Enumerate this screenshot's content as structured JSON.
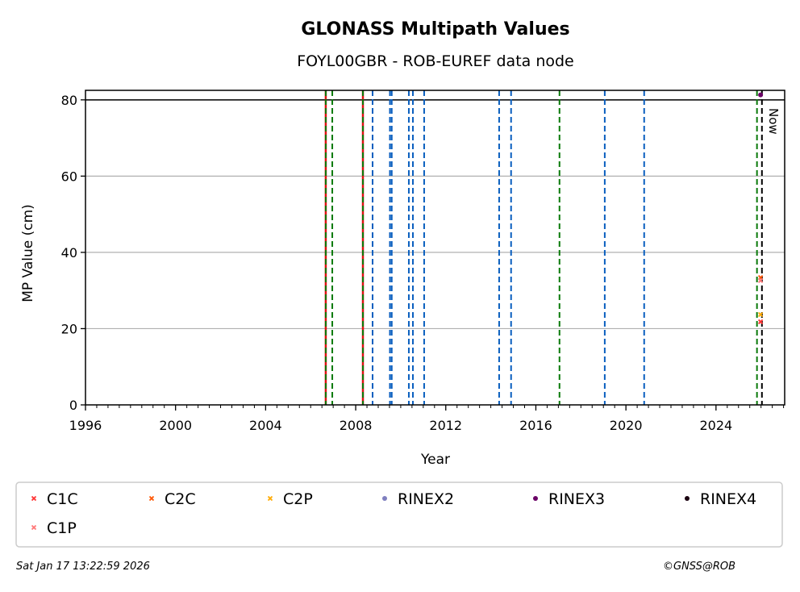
{
  "chart_data": {
    "type": "scatter",
    "title": "GLONASS Multipath Values",
    "subtitle": "FOYL00GBR - ROB-EUREF data node",
    "xlabel": "Year",
    "ylabel": "MP Value (cm)",
    "xlim": [
      1996,
      2027.05
    ],
    "ylim": [
      0,
      82.5
    ],
    "xticks": [
      1996,
      2000,
      2004,
      2008,
      2012,
      2016,
      2020,
      2024
    ],
    "yticks": [
      0,
      20,
      40,
      60,
      80
    ],
    "grid": "horizontal",
    "threshold_line": 80,
    "now_label": "Now",
    "now_year": 2026.04,
    "series": [
      {
        "name": "C1C",
        "marker": "x",
        "color": "#ff3333",
        "points": [
          [
            2025.98,
            21.8
          ]
        ]
      },
      {
        "name": "C2C",
        "marker": "x",
        "color": "#ff5500",
        "points": [
          [
            2025.98,
            33.4
          ]
        ]
      },
      {
        "name": "C2P",
        "marker": "x",
        "color": "#ffaa00",
        "points": [
          [
            2025.98,
            23.7
          ]
        ]
      },
      {
        "name": "RINEX2",
        "marker": "o",
        "color": "#7f7fbf",
        "points": []
      },
      {
        "name": "RINEX3",
        "marker": "o",
        "color": "#6a0066",
        "points": [
          [
            2025.98,
            81.3
          ]
        ]
      },
      {
        "name": "RINEX4",
        "marker": "o",
        "color": "#1a0010",
        "points": []
      },
      {
        "name": "C1P",
        "marker": "x",
        "color": "#ff7777",
        "points": [
          [
            2025.98,
            32.6
          ]
        ]
      }
    ],
    "events": [
      {
        "year": 2006.67,
        "color": "#dd1111",
        "style": "solid"
      },
      {
        "year": 2006.67,
        "color": "#0a7a0a",
        "style": "dashed"
      },
      {
        "year": 2006.96,
        "color": "#0a7a0a",
        "style": "dashed"
      },
      {
        "year": 2008.32,
        "color": "#dd1111",
        "style": "solid"
      },
      {
        "year": 2008.32,
        "color": "#0a7a0a",
        "style": "dashed"
      },
      {
        "year": 2008.75,
        "color": "#0a5fbf",
        "style": "dashed"
      },
      {
        "year": 2009.52,
        "color": "#0a5fbf",
        "style": "dashed"
      },
      {
        "year": 2009.6,
        "color": "#0a5fbf",
        "style": "dashed"
      },
      {
        "year": 2010.36,
        "color": "#0a5fbf",
        "style": "dashed"
      },
      {
        "year": 2010.54,
        "color": "#0a5fbf",
        "style": "dashed"
      },
      {
        "year": 2011.04,
        "color": "#0a5fbf",
        "style": "dashed"
      },
      {
        "year": 2014.37,
        "color": "#0a5fbf",
        "style": "dashed"
      },
      {
        "year": 2014.9,
        "color": "#0a5fbf",
        "style": "dashed"
      },
      {
        "year": 2017.05,
        "color": "#0a7a0a",
        "style": "dashed"
      },
      {
        "year": 2019.06,
        "color": "#0a5fbf",
        "style": "dashed"
      },
      {
        "year": 2020.81,
        "color": "#0a5fbf",
        "style": "dashed"
      },
      {
        "year": 2025.82,
        "color": "#0a7a0a",
        "style": "dashed"
      }
    ]
  },
  "footer": {
    "timestamp": "Sat Jan 17 13:22:59 2026",
    "copyright": "©GNSS@ROB"
  }
}
